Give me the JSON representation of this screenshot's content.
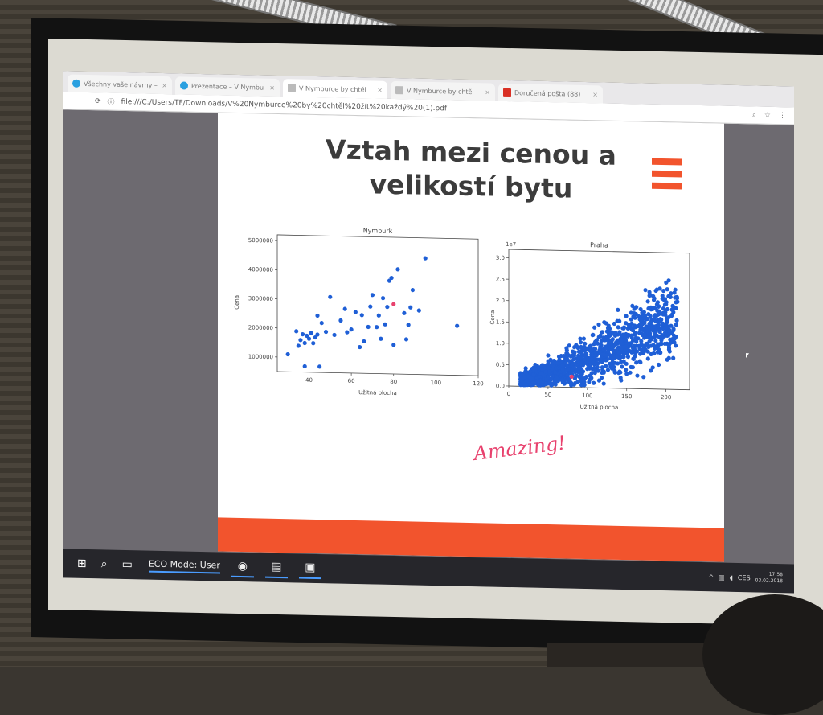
{
  "browser": {
    "tabs": [
      {
        "label": "Všechny vaše návrhy –"
      },
      {
        "label": "Prezentace – V Nymbu"
      },
      {
        "label": "V Nymburce by chtěl"
      },
      {
        "label": "V Nymburce by chtěl"
      },
      {
        "label": "Doručená pošta (88)"
      }
    ],
    "url": "file:///C:/Users/TF/Downloads/V%20Nymburce%20by%20chtěl%20žít%20každý%20(1).pdf"
  },
  "slide": {
    "title_line1": "Vztah mezi cenou a",
    "title_line2": "velikostí bytu",
    "caption": "Amazing!"
  },
  "chart_data": [
    {
      "type": "scatter",
      "title": "Nymburk",
      "xlabel": "Užitná plocha",
      "ylabel": "Cena",
      "xlim": [
        25,
        120
      ],
      "ylim": [
        500000,
        5200000
      ],
      "xticks": [
        "40",
        "60",
        "80",
        "100",
        "120"
      ],
      "yticks": [
        "1000000",
        "2000000",
        "3000000",
        "4000000",
        "5000000"
      ],
      "points": [
        [
          30,
          1100000
        ],
        [
          34,
          1900000
        ],
        [
          35,
          1400000
        ],
        [
          36,
          1600000
        ],
        [
          37,
          1800000
        ],
        [
          38,
          1500000
        ],
        [
          38,
          700000
        ],
        [
          39,
          1750000
        ],
        [
          40,
          1650000
        ],
        [
          41,
          1850000
        ],
        [
          42,
          1500000
        ],
        [
          43,
          1700000
        ],
        [
          44,
          1800000
        ],
        [
          44,
          2450000
        ],
        [
          45,
          700000
        ],
        [
          46,
          2200000
        ],
        [
          48,
          1900000
        ],
        [
          50,
          3100000
        ],
        [
          52,
          1800000
        ],
        [
          55,
          2300000
        ],
        [
          57,
          2700000
        ],
        [
          58,
          1900000
        ],
        [
          60,
          2000000
        ],
        [
          62,
          2600000
        ],
        [
          64,
          1400000
        ],
        [
          65,
          2500000
        ],
        [
          66,
          1600000
        ],
        [
          68,
          2100000
        ],
        [
          69,
          2800000
        ],
        [
          70,
          3200000
        ],
        [
          72,
          2100000
        ],
        [
          73,
          2500000
        ],
        [
          74,
          1700000
        ],
        [
          75,
          3100000
        ],
        [
          76,
          2200000
        ],
        [
          77,
          2800000
        ],
        [
          78,
          3700000
        ],
        [
          79,
          3800000
        ],
        [
          80,
          1500000
        ],
        [
          82,
          4100000
        ],
        [
          85,
          2600000
        ],
        [
          86,
          1700000
        ],
        [
          87,
          2200000
        ],
        [
          88,
          2800000
        ],
        [
          89,
          3400000
        ],
        [
          92,
          2700000
        ],
        [
          95,
          4500000
        ],
        [
          110,
          2200000
        ]
      ],
      "highlight": [
        [
          80,
          2900000
        ]
      ]
    },
    {
      "type": "scatter",
      "title": "Praha",
      "xlabel": "Užitná plocha",
      "ylabel": "Cena",
      "scale_note": "1e7",
      "xlim": [
        0,
        230
      ],
      "ylim": [
        0,
        3.2
      ],
      "xticks": [
        "0",
        "50",
        "100",
        "150",
        "200"
      ],
      "yticks": [
        "0.0",
        "0.5",
        "1.0",
        "1.5",
        "2.0",
        "2.5",
        "3.0"
      ],
      "highlight": [
        [
          80,
          0.25
        ]
      ]
    }
  ],
  "taskbar": {
    "eco_label": "ECO Mode: User",
    "lang": "CES",
    "time": "17:58",
    "date": "03.02.2018"
  }
}
